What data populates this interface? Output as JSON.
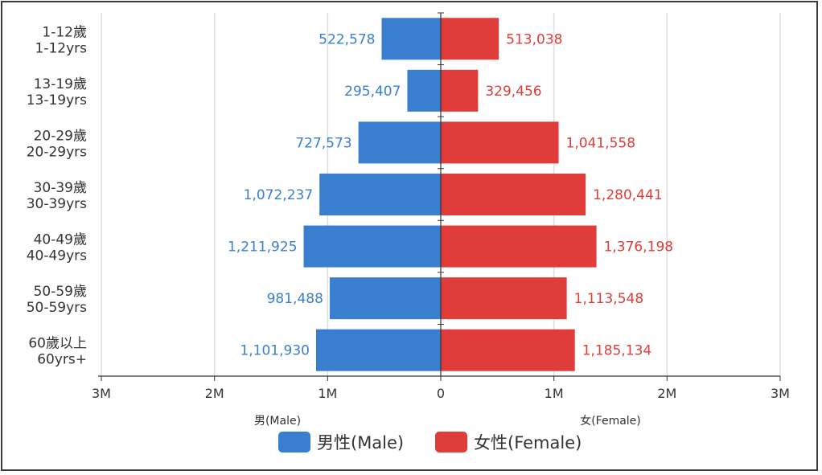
{
  "chart_data": {
    "type": "bar",
    "orientation": "horizontal",
    "layout": "population-pyramid",
    "categories": [
      [
        "1-12歲",
        "1-12yrs"
      ],
      [
        "13-19歲",
        "13-19yrs"
      ],
      [
        "20-29歲",
        "20-29yrs"
      ],
      [
        "30-39歲",
        "30-39yrs"
      ],
      [
        "40-49歲",
        "40-49yrs"
      ],
      [
        "50-59歲",
        "50-59yrs"
      ],
      [
        "60歲以上",
        "60yrs+"
      ]
    ],
    "series": [
      {
        "name": "男性(Male)",
        "side": "left",
        "color": "#3a7fcf",
        "values": [
          522578,
          295407,
          727573,
          1072237,
          1211925,
          981488,
          1101930
        ],
        "labels": [
          "522,578",
          "295,407",
          "727,573",
          "1,072,237",
          "1,211,925",
          "981,488",
          "1,101,930"
        ]
      },
      {
        "name": "女性(Female)",
        "side": "right",
        "color": "#e03c3a",
        "values": [
          513038,
          329456,
          1041558,
          1280441,
          1376198,
          1113548,
          1185134
        ],
        "labels": [
          "513,038",
          "329,456",
          "1,041,558",
          "1,280,441",
          "1,376,198",
          "1,113,548",
          "1,185,134"
        ]
      }
    ],
    "x_ticks": [
      {
        "value": -3000000,
        "label": "3M"
      },
      {
        "value": -2000000,
        "label": "2M"
      },
      {
        "value": -1000000,
        "label": "1M"
      },
      {
        "value": 0,
        "label": "0"
      },
      {
        "value": 1000000,
        "label": "1M"
      },
      {
        "value": 2000000,
        "label": "2M"
      },
      {
        "value": 3000000,
        "label": "3M"
      }
    ],
    "xlim": [
      -3000000,
      3000000
    ],
    "xlabel_left": "男(Male)",
    "xlabel_right": "女(Female)",
    "grid": true,
    "legend_position": "bottom-center"
  }
}
